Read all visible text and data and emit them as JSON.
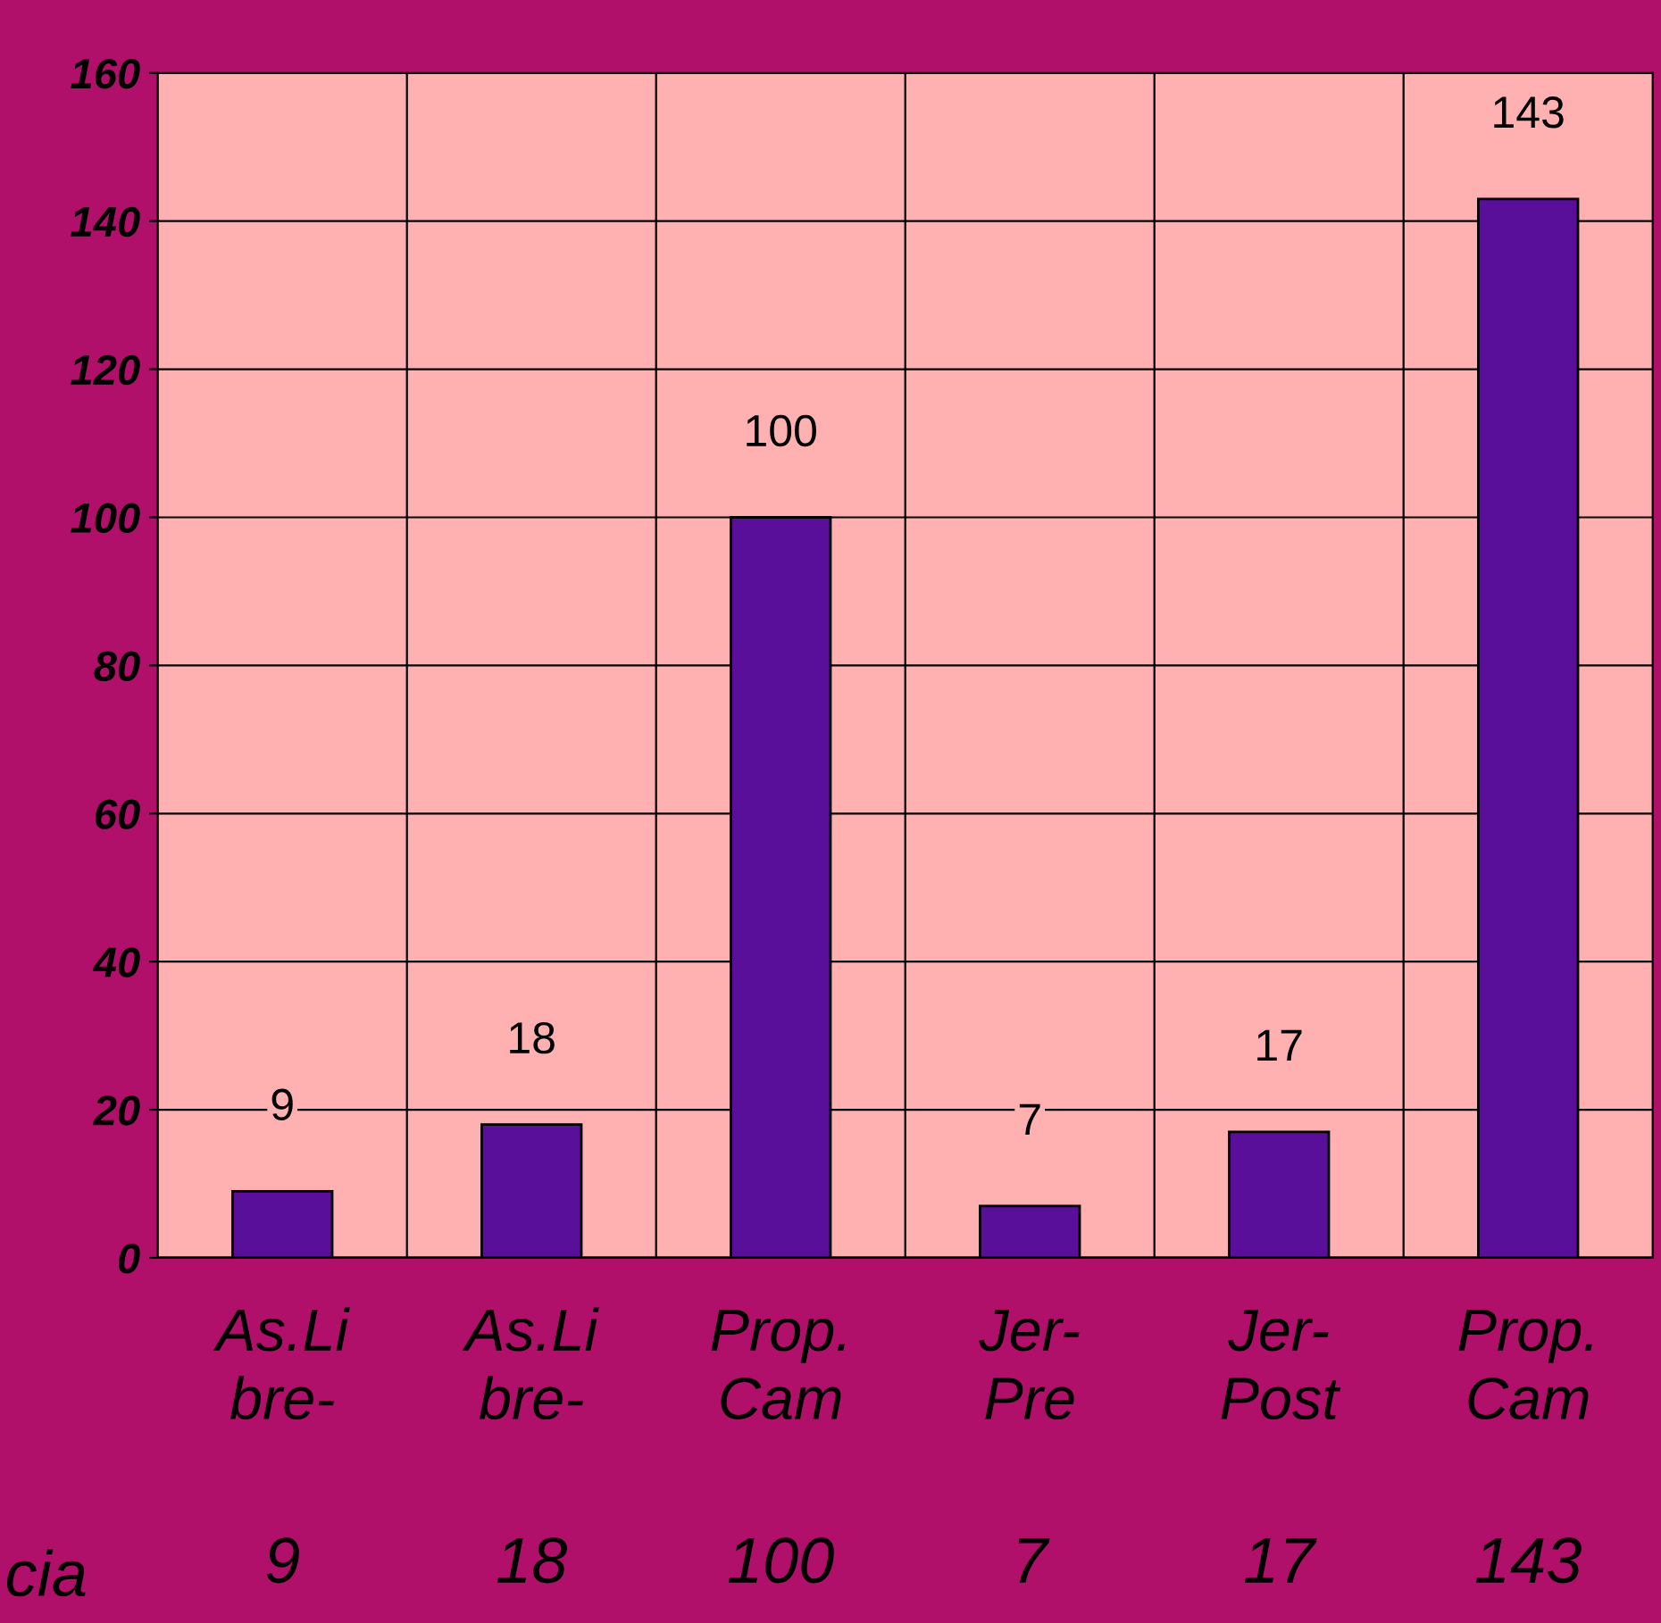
{
  "chart_data": {
    "type": "bar",
    "categories": [
      "As.Li\nbre-",
      "As.Li\nbre-",
      "Prop.\nCam",
      "Jer-\nPre",
      "Jer-\nPost",
      "Prop.\nCam"
    ],
    "values": [
      9,
      18,
      100,
      7,
      17,
      143
    ],
    "value_labels": [
      "9",
      "18",
      "100",
      "7",
      "17",
      "143"
    ],
    "color": "#5a0f9a",
    "ylim": [
      0,
      160
    ],
    "yticks": [
      0,
      20,
      40,
      60,
      80,
      100,
      120,
      140,
      160
    ],
    "grid": true,
    "data_labels": true,
    "annotations": [
      "cia",
      "9",
      "18",
      "100",
      "7",
      "17",
      "143"
    ]
  }
}
